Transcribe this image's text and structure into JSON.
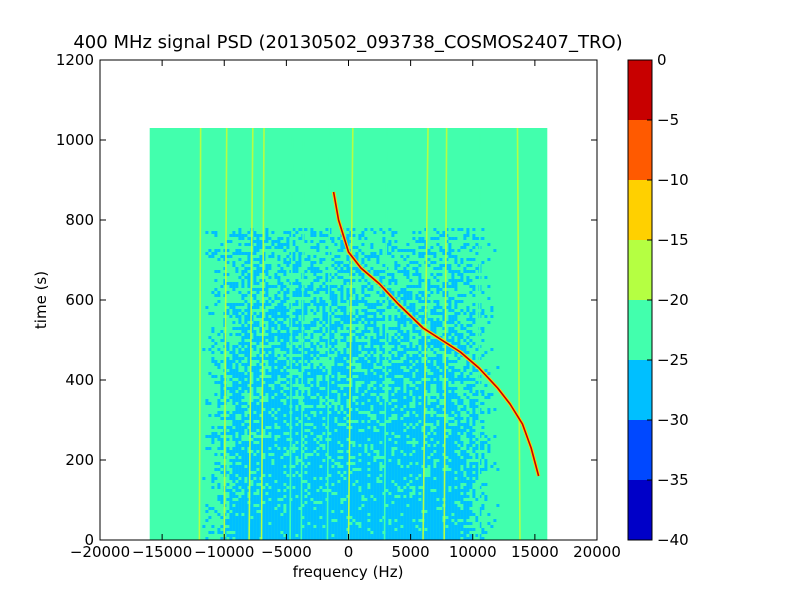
{
  "chart_data": {
    "type": "heatmap",
    "title": "400 MHz signal PSD (20130502_093738_COSMOS2407_TRO)",
    "xlabel": "frequency (Hz)",
    "ylabel": "time (s)",
    "xlim": [
      -20000,
      20000
    ],
    "ylim": [
      0,
      1200
    ],
    "x_ticks": [
      -20000,
      -15000,
      -10000,
      -5000,
      0,
      5000,
      10000,
      15000,
      20000
    ],
    "y_ticks": [
      0,
      200,
      400,
      600,
      800,
      1000,
      1200
    ],
    "data_extent": {
      "x": [
        -16000,
        16000
      ],
      "y": [
        0,
        1030
      ]
    },
    "background_level": -22.5,
    "noise_region": {
      "x": [
        -12000,
        12000
      ],
      "y": [
        0,
        780
      ],
      "level": -27.5
    },
    "vertical_lines": [
      {
        "x": [
          -12000,
          -11900
        ],
        "level": -17.5
      },
      {
        "x": [
          -10000,
          -9800
        ],
        "level": -17.5
      },
      {
        "x": [
          -8000,
          -7700
        ],
        "level": -17.5
      },
      {
        "x": [
          -7000,
          -6800
        ],
        "level": -17.5
      },
      {
        "x": [
          -4700,
          -4500
        ],
        "level": -20
      },
      {
        "x": [
          -3800,
          -3600
        ],
        "level": -20
      },
      {
        "x": [
          -1700,
          -1500
        ],
        "level": -20
      },
      {
        "x": [
          0,
          350
        ],
        "level": -17.5
      },
      {
        "x": [
          2900,
          3100
        ],
        "level": -20
      },
      {
        "x": [
          6000,
          6400
        ],
        "level": -17.5
      },
      {
        "x": [
          7700,
          7900
        ],
        "level": -17.5
      },
      {
        "x": [
          10500,
          10600
        ],
        "level": -20
      },
      {
        "x": [
          13800,
          13600
        ],
        "level": -17.5
      }
    ],
    "signal_trace": {
      "level": -2.5,
      "points": [
        [
          -1200,
          870
        ],
        [
          -800,
          800
        ],
        [
          0,
          720
        ],
        [
          1000,
          680
        ],
        [
          2500,
          640
        ],
        [
          4000,
          590
        ],
        [
          5000,
          560
        ],
        [
          6000,
          530
        ],
        [
          7500,
          500
        ],
        [
          9000,
          470
        ],
        [
          10500,
          430
        ],
        [
          12000,
          380
        ],
        [
          13000,
          340
        ],
        [
          14000,
          290
        ],
        [
          14700,
          230
        ],
        [
          15300,
          160
        ]
      ]
    },
    "colorbar": {
      "range": [
        -40,
        0
      ],
      "ticks": [
        0,
        -5,
        -10,
        -15,
        -20,
        -25,
        -30,
        -35,
        -40
      ],
      "levels": [
        {
          "from": -40,
          "to": -35,
          "color": "#0000c8"
        },
        {
          "from": -35,
          "to": -30,
          "color": "#0048ff"
        },
        {
          "from": -30,
          "to": -25,
          "color": "#00bfff"
        },
        {
          "from": -25,
          "to": -20,
          "color": "#42ffad"
        },
        {
          "from": -20,
          "to": -15,
          "color": "#b5ff42"
        },
        {
          "from": -15,
          "to": -10,
          "color": "#ffd000"
        },
        {
          "from": -10,
          "to": -5,
          "color": "#ff5a00"
        },
        {
          "from": -5,
          "to": 0,
          "color": "#c80000"
        }
      ]
    }
  }
}
